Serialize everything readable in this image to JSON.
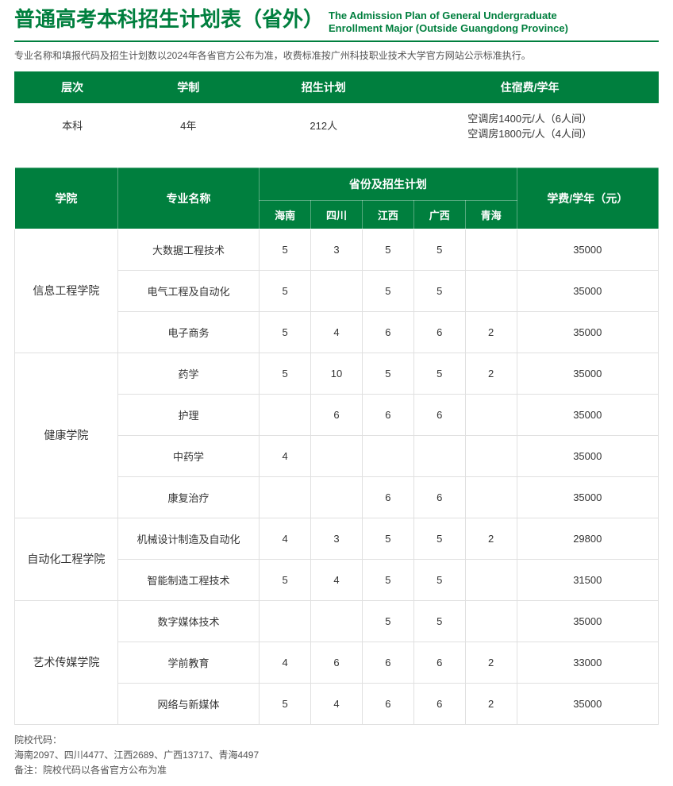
{
  "header": {
    "title_cn": "普通高考本科招生计划表（省外）",
    "title_en_line1": "The Admission Plan of General Undergraduate",
    "title_en_line2": "Enrollment Major (Outside Guangdong Province)"
  },
  "note": "专业名称和填报代码及招生计划数以2024年各省官方公布为准，收费标准按广州科技职业技术大学官方网站公示标准执行。",
  "summary": {
    "headers": [
      "层次",
      "学制",
      "招生计划",
      "住宿费/学年"
    ],
    "row": {
      "level": "本科",
      "duration": "4年",
      "plan": "212人",
      "dorm1": "空调房1400元/人（6人间）",
      "dorm2": "空调房1800元/人（4人间）"
    }
  },
  "main": {
    "header_college": "学院",
    "header_major": "专业名称",
    "header_province_group": "省份及招生计划",
    "header_tuition": "学费/学年（元）",
    "provinces": [
      "海南",
      "四川",
      "江西",
      "广西",
      "青海"
    ],
    "groups": [
      {
        "college": "信息工程学院",
        "rows": [
          {
            "major": "大数据工程技术",
            "vals": [
              "5",
              "3",
              "5",
              "5",
              ""
            ],
            "tuition": "35000"
          },
          {
            "major": "电气工程及自动化",
            "vals": [
              "5",
              "",
              "5",
              "5",
              ""
            ],
            "tuition": "35000"
          },
          {
            "major": "电子商务",
            "vals": [
              "5",
              "4",
              "6",
              "6",
              "2"
            ],
            "tuition": "35000"
          }
        ]
      },
      {
        "college": "健康学院",
        "rows": [
          {
            "major": "药学",
            "vals": [
              "5",
              "10",
              "5",
              "5",
              "2"
            ],
            "tuition": "35000"
          },
          {
            "major": "护理",
            "vals": [
              "",
              "6",
              "6",
              "6",
              ""
            ],
            "tuition": "35000"
          },
          {
            "major": "中药学",
            "vals": [
              "4",
              "",
              "",
              "",
              ""
            ],
            "tuition": "35000"
          },
          {
            "major": "康复治疗",
            "vals": [
              "",
              "",
              "6",
              "6",
              ""
            ],
            "tuition": "35000"
          }
        ]
      },
      {
        "college": "自动化工程学院",
        "rows": [
          {
            "major": "机械设计制造及自动化",
            "vals": [
              "4",
              "3",
              "5",
              "5",
              "2"
            ],
            "tuition": "29800"
          },
          {
            "major": "智能制造工程技术",
            "vals": [
              "5",
              "4",
              "5",
              "5",
              ""
            ],
            "tuition": "31500"
          }
        ]
      },
      {
        "college": "艺术传媒学院",
        "rows": [
          {
            "major": "数字媒体技术",
            "vals": [
              "",
              "",
              "5",
              "5",
              ""
            ],
            "tuition": "35000"
          },
          {
            "major": "学前教育",
            "vals": [
              "4",
              "6",
              "6",
              "6",
              "2"
            ],
            "tuition": "33000"
          },
          {
            "major": "网络与新媒体",
            "vals": [
              "5",
              "4",
              "6",
              "6",
              "2"
            ],
            "tuition": "35000"
          }
        ]
      }
    ]
  },
  "footer": {
    "line1": "院校代码：",
    "line2": "海南2097、四川4477、江西2689、广西13717、青海4497",
    "line3": "备注：院校代码以各省官方公布为准"
  },
  "colors": {
    "primary": "#007f3e",
    "border": "#e0e0e0",
    "text": "#333333",
    "muted": "#555555"
  }
}
